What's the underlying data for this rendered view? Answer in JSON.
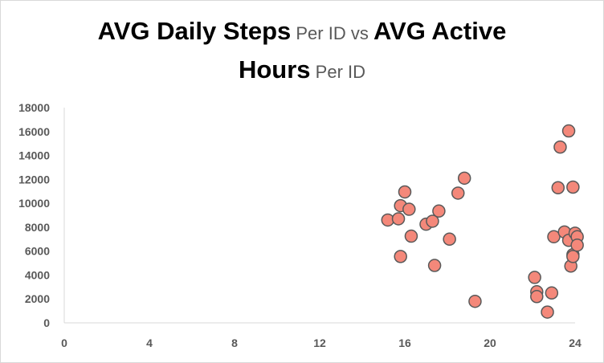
{
  "chart_data": {
    "type": "scatter",
    "title_parts": [
      {
        "text": "AVG Daily Steps",
        "style": "big"
      },
      {
        "text": " Per ID vs ",
        "style": "small"
      },
      {
        "text": "AVG Active",
        "style": "big"
      },
      {
        "text": "Hours",
        "style": "big",
        "break_before": true
      },
      {
        "text": " Per ID",
        "style": "small"
      }
    ],
    "xlabel": "",
    "ylabel": "",
    "xlim": [
      0,
      24
    ],
    "ylim": [
      0,
      18000
    ],
    "x_ticks": [
      "0",
      "4",
      "8",
      "12",
      "16",
      "20",
      "24"
    ],
    "y_ticks": [
      "0",
      "2000",
      "4000",
      "6000",
      "8000",
      "10000",
      "12000",
      "14000",
      "16000",
      "18000"
    ],
    "grid": false,
    "legend": "none",
    "marker_color": "#f4887a",
    "marker_edge": "#595959",
    "points": [
      {
        "x": 15.2,
        "y": 8600
      },
      {
        "x": 15.7,
        "y": 8700
      },
      {
        "x": 15.8,
        "y": 9800
      },
      {
        "x": 15.8,
        "y": 5550
      },
      {
        "x": 16.0,
        "y": 10950
      },
      {
        "x": 16.2,
        "y": 9500
      },
      {
        "x": 16.3,
        "y": 7250
      },
      {
        "x": 17.0,
        "y": 8250
      },
      {
        "x": 17.3,
        "y": 8500
      },
      {
        "x": 17.4,
        "y": 4800
      },
      {
        "x": 17.6,
        "y": 9350
      },
      {
        "x": 18.1,
        "y": 7000
      },
      {
        "x": 18.5,
        "y": 10850
      },
      {
        "x": 18.8,
        "y": 12100
      },
      {
        "x": 19.3,
        "y": 1800
      },
      {
        "x": 22.1,
        "y": 3800
      },
      {
        "x": 22.2,
        "y": 2600
      },
      {
        "x": 22.2,
        "y": 2200
      },
      {
        "x": 22.7,
        "y": 900
      },
      {
        "x": 22.9,
        "y": 2500
      },
      {
        "x": 23.0,
        "y": 7200
      },
      {
        "x": 23.2,
        "y": 11300
      },
      {
        "x": 23.3,
        "y": 14700
      },
      {
        "x": 23.5,
        "y": 7600
      },
      {
        "x": 23.7,
        "y": 6900
      },
      {
        "x": 23.7,
        "y": 16050
      },
      {
        "x": 23.8,
        "y": 4750
      },
      {
        "x": 23.9,
        "y": 11350
      },
      {
        "x": 23.9,
        "y": 5700
      },
      {
        "x": 23.9,
        "y": 5550
      },
      {
        "x": 24.0,
        "y": 7500
      },
      {
        "x": 24.1,
        "y": 7200
      },
      {
        "x": 24.1,
        "y": 6500
      }
    ]
  }
}
